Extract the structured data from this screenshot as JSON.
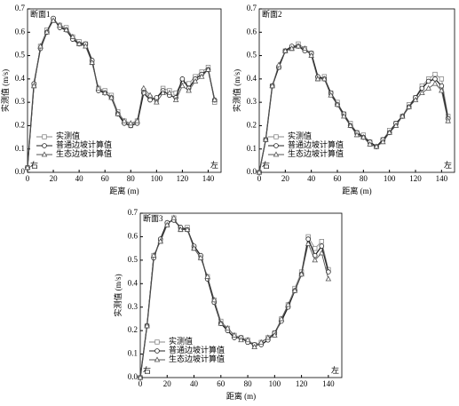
{
  "chart_data": [
    {
      "type": "line",
      "title": "断面1",
      "side_labels": [
        "右",
        "左"
      ],
      "xlabel": "距离 (m)",
      "ylabel": "实测值 (m/s)",
      "xlim": [
        0,
        150
      ],
      "ylim": [
        0,
        0.7
      ],
      "xticks": [
        0,
        20,
        40,
        60,
        80,
        100,
        120,
        140
      ],
      "yticks": [
        {
          "value": 0,
          "label": "0.0"
        },
        0.1,
        0.2,
        0.3,
        0.4,
        0.5,
        0.6,
        0.7
      ],
      "x": [
        0,
        5,
        10,
        15,
        20,
        25,
        30,
        35,
        40,
        45,
        50,
        55,
        60,
        65,
        70,
        75,
        80,
        85,
        90,
        95,
        100,
        105,
        110,
        115,
        120,
        125,
        130,
        135,
        140,
        145
      ],
      "series": [
        {
          "name": "实测值",
          "color": "#888888",
          "marker": "square",
          "values": [
            0.02,
            0.37,
            0.54,
            0.61,
            0.65,
            0.63,
            0.62,
            0.58,
            0.56,
            0.55,
            0.47,
            0.36,
            0.35,
            0.33,
            0.26,
            0.22,
            0.2,
            0.22,
            0.35,
            0.32,
            0.31,
            0.36,
            0.35,
            0.34,
            0.39,
            0.38,
            0.41,
            0.43,
            0.45,
            0.3
          ]
        },
        {
          "name": "普通边坡计算值",
          "color": "#222222",
          "marker": "circle",
          "values": [
            0.02,
            0.38,
            0.53,
            0.6,
            0.66,
            0.62,
            0.61,
            0.57,
            0.55,
            0.55,
            0.48,
            0.35,
            0.34,
            0.32,
            0.25,
            0.21,
            0.2,
            0.21,
            0.34,
            0.31,
            0.32,
            0.35,
            0.33,
            0.32,
            0.4,
            0.36,
            0.4,
            0.42,
            0.44,
            0.31
          ]
        },
        {
          "name": "生态边坡计算值",
          "color": "#555555",
          "marker": "triangle",
          "values": [
            0.02,
            0.37,
            0.54,
            0.6,
            0.65,
            0.63,
            0.61,
            0.58,
            0.55,
            0.54,
            0.47,
            0.36,
            0.34,
            0.32,
            0.25,
            0.22,
            0.21,
            0.22,
            0.36,
            0.33,
            0.3,
            0.34,
            0.34,
            0.31,
            0.37,
            0.35,
            0.39,
            0.41,
            0.44,
            0.31
          ]
        }
      ]
    },
    {
      "type": "line",
      "title": "断面2",
      "side_labels": [
        "右",
        "左"
      ],
      "xlabel": "距离 (m)",
      "ylabel": "实测值 (m/s)",
      "xlim": [
        0,
        150
      ],
      "ylim": [
        0,
        0.7
      ],
      "xticks": [
        0,
        20,
        40,
        60,
        80,
        100,
        120,
        140
      ],
      "yticks": [
        {
          "value": 0,
          "label": "0.0"
        },
        0.1,
        0.2,
        0.3,
        0.4,
        0.5,
        0.6,
        0.7
      ],
      "x": [
        0,
        5,
        10,
        15,
        20,
        25,
        30,
        35,
        40,
        45,
        50,
        55,
        60,
        65,
        70,
        75,
        80,
        85,
        90,
        95,
        100,
        105,
        110,
        115,
        120,
        125,
        130,
        135,
        140,
        145
      ],
      "series": [
        {
          "name": "实测值",
          "color": "#888888",
          "marker": "square",
          "values": [
            0,
            0.14,
            0.37,
            0.45,
            0.52,
            0.53,
            0.55,
            0.53,
            0.51,
            0.4,
            0.41,
            0.34,
            0.3,
            0.25,
            0.21,
            0.17,
            0.16,
            0.13,
            0.11,
            0.14,
            0.18,
            0.21,
            0.24,
            0.29,
            0.32,
            0.37,
            0.4,
            0.42,
            0.4,
            0.24
          ]
        },
        {
          "name": "普通边坡计算值",
          "color": "#222222",
          "marker": "circle",
          "values": [
            0,
            0.14,
            0.37,
            0.45,
            0.52,
            0.54,
            0.54,
            0.52,
            0.51,
            0.41,
            0.4,
            0.34,
            0.29,
            0.25,
            0.2,
            0.17,
            0.15,
            0.13,
            0.11,
            0.14,
            0.17,
            0.21,
            0.24,
            0.28,
            0.32,
            0.36,
            0.39,
            0.4,
            0.37,
            0.23
          ]
        },
        {
          "name": "生态边坡计算值",
          "color": "#555555",
          "marker": "triangle",
          "values": [
            0,
            0.14,
            0.37,
            0.46,
            0.52,
            0.53,
            0.54,
            0.53,
            0.5,
            0.4,
            0.4,
            0.33,
            0.29,
            0.24,
            0.2,
            0.16,
            0.15,
            0.12,
            0.11,
            0.13,
            0.17,
            0.2,
            0.24,
            0.28,
            0.31,
            0.34,
            0.36,
            0.38,
            0.35,
            0.22
          ]
        }
      ]
    },
    {
      "type": "line",
      "title": "断面3",
      "side_labels": [
        "右",
        "左"
      ],
      "xlabel": "距离 (m)",
      "ylabel": "实测值 (m/s)",
      "xlim": [
        0,
        150
      ],
      "ylim": [
        0,
        0.7
      ],
      "xticks": [
        0,
        20,
        40,
        60,
        80,
        100,
        120,
        140
      ],
      "yticks": [
        {
          "value": 0,
          "label": "0.0"
        },
        0.1,
        0.2,
        0.3,
        0.4,
        0.5,
        0.6,
        0.7
      ],
      "x": [
        0,
        5,
        10,
        15,
        20,
        25,
        30,
        35,
        40,
        45,
        50,
        55,
        60,
        65,
        70,
        75,
        80,
        85,
        90,
        95,
        100,
        105,
        110,
        115,
        120,
        125,
        130,
        135,
        140
      ],
      "series": [
        {
          "name": "实测值",
          "color": "#888888",
          "marker": "square",
          "values": [
            0,
            0.22,
            0.52,
            0.58,
            0.65,
            0.68,
            0.63,
            0.64,
            0.55,
            0.51,
            0.43,
            0.33,
            0.24,
            0.21,
            0.18,
            0.17,
            0.16,
            0.14,
            0.15,
            0.17,
            0.19,
            0.25,
            0.31,
            0.38,
            0.45,
            0.6,
            0.55,
            0.58,
            0.46
          ]
        },
        {
          "name": "普通边坡计算值",
          "color": "#222222",
          "marker": "circle",
          "values": [
            0,
            0.22,
            0.51,
            0.59,
            0.66,
            0.67,
            0.64,
            0.63,
            0.56,
            0.52,
            0.42,
            0.32,
            0.23,
            0.2,
            0.17,
            0.17,
            0.15,
            0.14,
            0.14,
            0.16,
            0.19,
            0.24,
            0.3,
            0.37,
            0.44,
            0.59,
            0.52,
            0.56,
            0.45
          ]
        },
        {
          "name": "生态边坡计算值",
          "color": "#555555",
          "marker": "triangle",
          "values": [
            0,
            0.22,
            0.52,
            0.58,
            0.65,
            0.68,
            0.63,
            0.63,
            0.55,
            0.51,
            0.43,
            0.33,
            0.23,
            0.21,
            0.18,
            0.16,
            0.16,
            0.13,
            0.15,
            0.17,
            0.18,
            0.25,
            0.31,
            0.37,
            0.44,
            0.57,
            0.5,
            0.53,
            0.42
          ]
        }
      ]
    }
  ]
}
